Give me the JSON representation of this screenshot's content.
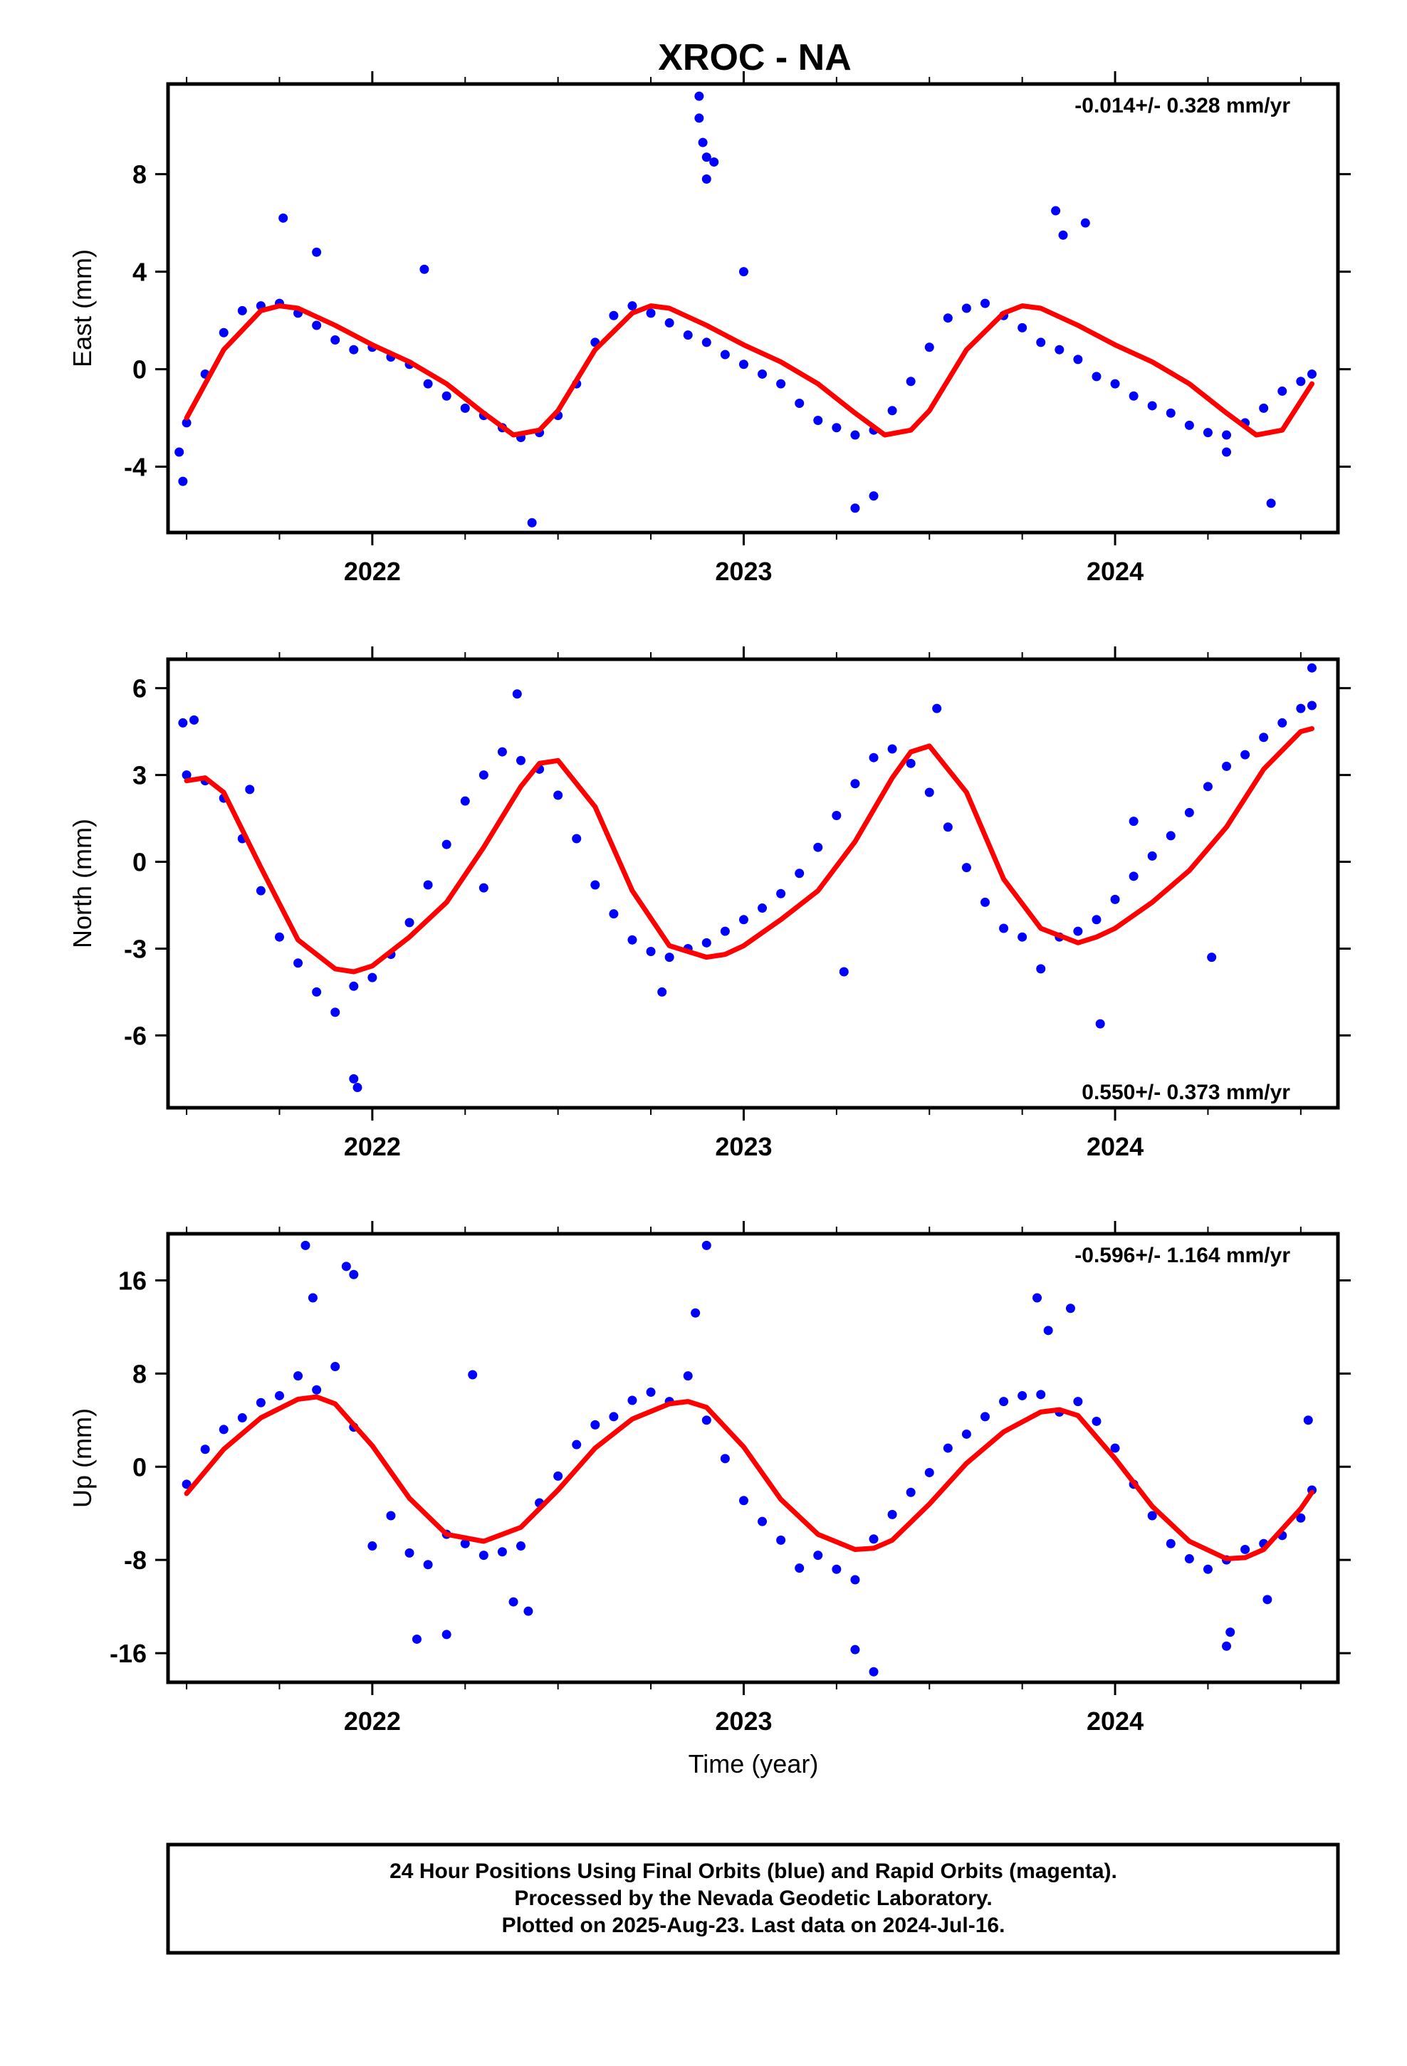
{
  "chart_data": {
    "type": "scatter",
    "title": "XROC - NA",
    "xlabel": "Time (year)",
    "x_ticks": [
      "2022",
      "2023",
      "2024"
    ],
    "xlim": [
      2021.45,
      2024.6
    ],
    "colors": {
      "final_orbits": "#0000ff",
      "fit": "#ff0000",
      "axes": "#000000"
    },
    "panels": [
      {
        "ylabel": "East (mm)",
        "ylim": [
          -6.7,
          11.7
        ],
        "y_ticks": [
          "-4",
          "0",
          "4",
          "8"
        ],
        "y_tick_values": [
          -4,
          0,
          4,
          8
        ],
        "rate": "-0.014+/- 0.328 mm/yr",
        "rate_position": "top-right",
        "series": [
          {
            "kind": "points",
            "x": [
              2021.5,
              2021.55,
              2021.6,
              2021.65,
              2021.7,
              2021.75,
              2021.8,
              2021.85,
              2021.9,
              2021.95,
              2022.0,
              2022.05,
              2022.1,
              2022.15,
              2022.2,
              2022.25,
              2022.3,
              2022.35,
              2022.4,
              2022.45,
              2022.5,
              2022.55,
              2022.6,
              2022.65,
              2022.7,
              2022.75,
              2022.8,
              2022.85,
              2022.9,
              2022.95,
              2023.0,
              2023.05,
              2023.1,
              2023.15,
              2023.2,
              2023.25,
              2023.3,
              2023.35,
              2023.4,
              2023.45,
              2023.5,
              2023.55,
              2023.6,
              2023.65,
              2023.7,
              2023.75,
              2023.8,
              2023.85,
              2023.9,
              2023.95,
              2024.0,
              2024.05,
              2024.1,
              2024.15,
              2024.2,
              2024.25,
              2024.3,
              2024.35,
              2024.4,
              2024.45,
              2024.5,
              2024.53
            ],
            "y": [
              -2.2,
              -0.2,
              1.5,
              2.4,
              2.6,
              2.7,
              2.3,
              1.8,
              1.2,
              0.8,
              0.9,
              0.5,
              0.2,
              -0.6,
              -1.1,
              -1.6,
              -1.9,
              -2.4,
              -2.8,
              -2.6,
              -1.9,
              -0.6,
              1.1,
              2.2,
              2.6,
              2.3,
              1.9,
              1.4,
              1.1,
              0.6,
              0.2,
              -0.2,
              -0.6,
              -1.4,
              -2.1,
              -2.4,
              -2.7,
              -2.5,
              -1.7,
              -0.5,
              0.9,
              2.1,
              2.5,
              2.7,
              2.2,
              1.7,
              1.1,
              0.8,
              0.4,
              -0.3,
              -0.6,
              -1.1,
              -1.5,
              -1.8,
              -2.3,
              -2.6,
              -2.7,
              -2.2,
              -1.6,
              -0.9,
              -0.5,
              -0.2
            ]
          },
          {
            "kind": "points",
            "x": [
              2021.48,
              2021.49,
              2021.76,
              2021.85,
              2022.14,
              2022.43,
              2022.88,
              2022.88,
              2022.89,
              2022.9,
              2022.9,
              2022.92,
              2023.0,
              2023.3,
              2023.35,
              2023.84,
              2023.86,
              2023.92,
              2024.3,
              2024.42
            ],
            "y": [
              -3.4,
              -4.6,
              6.2,
              4.8,
              4.1,
              -6.3,
              11.2,
              10.3,
              9.3,
              8.7,
              7.8,
              8.5,
              4.0,
              -5.7,
              -5.2,
              6.5,
              5.5,
              6.0,
              -3.4,
              -5.5
            ]
          },
          {
            "kind": "fit",
            "x": [
              2021.5,
              2021.6,
              2021.7,
              2021.75,
              2021.8,
              2021.9,
              2022.0,
              2022.1,
              2022.2,
              2022.3,
              2022.38,
              2022.45,
              2022.5,
              2022.6,
              2022.7,
              2022.75,
              2022.8,
              2022.9,
              2023.0,
              2023.1,
              2023.2,
              2023.3,
              2023.38,
              2023.45,
              2023.5,
              2023.6,
              2023.7,
              2023.75,
              2023.8,
              2023.9,
              2024.0,
              2024.1,
              2024.2,
              2024.3,
              2024.38,
              2024.45,
              2024.53
            ],
            "y": [
              -2.0,
              0.8,
              2.4,
              2.6,
              2.5,
              1.8,
              1.0,
              0.3,
              -0.6,
              -1.8,
              -2.7,
              -2.5,
              -1.7,
              0.8,
              2.3,
              2.6,
              2.5,
              1.8,
              1.0,
              0.3,
              -0.6,
              -1.8,
              -2.7,
              -2.5,
              -1.7,
              0.8,
              2.3,
              2.6,
              2.5,
              1.8,
              1.0,
              0.3,
              -0.6,
              -1.8,
              -2.7,
              -2.5,
              -0.6
            ]
          }
        ]
      },
      {
        "ylabel": "North (mm)",
        "ylim": [
          -8.5,
          7.0
        ],
        "y_ticks": [
          "-6",
          "-3",
          "0",
          "3",
          "6"
        ],
        "y_tick_values": [
          -6,
          -3,
          0,
          3,
          6
        ],
        "rate": "0.550+/- 0.373 mm/yr",
        "rate_position": "bottom-right",
        "series": [
          {
            "kind": "points",
            "x": [
              2021.5,
              2021.55,
              2021.6,
              2021.65,
              2021.7,
              2021.75,
              2021.8,
              2021.85,
              2021.9,
              2021.95,
              2022.0,
              2022.05,
              2022.1,
              2022.15,
              2022.2,
              2022.25,
              2022.3,
              2022.35,
              2022.4,
              2022.45,
              2022.5,
              2022.55,
              2022.6,
              2022.65,
              2022.7,
              2022.75,
              2022.8,
              2022.85,
              2022.9,
              2022.95,
              2023.0,
              2023.05,
              2023.1,
              2023.15,
              2023.2,
              2023.25,
              2023.3,
              2023.35,
              2023.4,
              2023.45,
              2023.5,
              2023.55,
              2023.6,
              2023.65,
              2023.7,
              2023.75,
              2023.8,
              2023.85,
              2023.9,
              2023.95,
              2024.0,
              2024.05,
              2024.1,
              2024.15,
              2024.2,
              2024.25,
              2024.3,
              2024.35,
              2024.4,
              2024.45,
              2024.5,
              2024.53
            ],
            "y": [
              3.0,
              2.8,
              2.2,
              0.8,
              -1.0,
              -2.6,
              -3.5,
              -4.5,
              -5.2,
              -4.3,
              -4.0,
              -3.2,
              -2.1,
              -0.8,
              0.6,
              2.1,
              3.0,
              3.8,
              3.5,
              3.2,
              2.3,
              0.8,
              -0.8,
              -1.8,
              -2.7,
              -3.1,
              -3.3,
              -3.0,
              -2.8,
              -2.4,
              -2.0,
              -1.6,
              -1.1,
              -0.4,
              0.5,
              1.6,
              2.7,
              3.6,
              3.9,
              3.4,
              2.4,
              1.2,
              -0.2,
              -1.4,
              -2.3,
              -2.6,
              -3.7,
              -2.6,
              -2.4,
              -2.0,
              -1.3,
              -0.5,
              0.2,
              0.9,
              1.7,
              2.6,
              3.3,
              3.7,
              4.3,
              4.8,
              5.3,
              5.4
            ]
          },
          {
            "kind": "points",
            "x": [
              2021.49,
              2021.52,
              2021.67,
              2021.95,
              2021.96,
              2022.3,
              2022.39,
              2022.78,
              2023.27,
              2023.52,
              2023.96,
              2024.05,
              2024.26,
              2024.53
            ],
            "y": [
              4.8,
              4.9,
              2.5,
              -7.5,
              -7.8,
              -0.9,
              5.8,
              -4.5,
              -3.8,
              5.3,
              -5.6,
              1.4,
              -3.3,
              6.7
            ]
          },
          {
            "kind": "fit",
            "x": [
              2021.5,
              2021.55,
              2021.6,
              2021.7,
              2021.8,
              2021.9,
              2021.95,
              2022.0,
              2022.1,
              2022.2,
              2022.3,
              2022.4,
              2022.45,
              2022.5,
              2022.6,
              2022.7,
              2022.8,
              2022.9,
              2022.95,
              2023.0,
              2023.1,
              2023.2,
              2023.3,
              2023.4,
              2023.45,
              2023.5,
              2023.6,
              2023.7,
              2023.8,
              2023.9,
              2023.95,
              2024.0,
              2024.1,
              2024.2,
              2024.3,
              2024.4,
              2024.5,
              2024.53
            ],
            "y": [
              2.8,
              2.9,
              2.4,
              -0.2,
              -2.7,
              -3.7,
              -3.8,
              -3.6,
              -2.6,
              -1.4,
              0.5,
              2.6,
              3.4,
              3.5,
              1.9,
              -1.0,
              -2.9,
              -3.3,
              -3.2,
              -2.9,
              -2.0,
              -1.0,
              0.7,
              2.9,
              3.8,
              4.0,
              2.4,
              -0.6,
              -2.3,
              -2.8,
              -2.6,
              -2.3,
              -1.4,
              -0.3,
              1.2,
              3.2,
              4.5,
              4.6
            ]
          }
        ]
      },
      {
        "ylabel": "Up (mm)",
        "ylim": [
          -18.5,
          20.0
        ],
        "y_ticks": [
          "-16",
          "-8",
          "0",
          "8",
          "16"
        ],
        "y_tick_values": [
          -16,
          -8,
          0,
          8,
          16
        ],
        "rate": "-0.596+/- 1.164 mm/yr",
        "rate_position": "top-right",
        "series": [
          {
            "kind": "points",
            "x": [
              2021.5,
              2021.55,
              2021.6,
              2021.65,
              2021.7,
              2021.75,
              2021.8,
              2021.85,
              2021.9,
              2021.95,
              2022.0,
              2022.05,
              2022.1,
              2022.15,
              2022.2,
              2022.25,
              2022.3,
              2022.35,
              2022.4,
              2022.45,
              2022.5,
              2022.55,
              2022.6,
              2022.65,
              2022.7,
              2022.75,
              2022.8,
              2022.85,
              2022.9,
              2022.95,
              2023.0,
              2023.05,
              2023.1,
              2023.15,
              2023.2,
              2023.25,
              2023.3,
              2023.35,
              2023.4,
              2023.45,
              2023.5,
              2023.55,
              2023.6,
              2023.65,
              2023.7,
              2023.75,
              2023.8,
              2023.85,
              2023.9,
              2023.95,
              2024.0,
              2024.05,
              2024.1,
              2024.15,
              2024.2,
              2024.25,
              2024.3,
              2024.35,
              2024.4,
              2024.45,
              2024.5,
              2024.53
            ],
            "y": [
              -1.5,
              1.5,
              3.2,
              4.2,
              5.5,
              6.1,
              7.8,
              6.6,
              8.6,
              3.4,
              -6.8,
              -4.2,
              -7.4,
              -8.4,
              -5.8,
              -6.6,
              -7.6,
              -7.3,
              -6.8,
              -3.1,
              -0.8,
              1.9,
              3.6,
              4.3,
              5.7,
              6.4,
              5.6,
              7.8,
              4.0,
              0.7,
              -2.9,
              -4.7,
              -6.3,
              -8.7,
              -7.6,
              -8.8,
              -9.7,
              -6.2,
              -4.1,
              -2.2,
              -0.5,
              1.6,
              2.8,
              4.3,
              5.6,
              6.1,
              6.2,
              4.7,
              5.6,
              3.9,
              1.6,
              -1.5,
              -4.2,
              -6.6,
              -7.9,
              -8.8,
              -8.0,
              -7.1,
              -6.6,
              -5.9,
              -4.4,
              -2.0
            ]
          },
          {
            "kind": "points",
            "x": [
              2021.82,
              2021.84,
              2021.93,
              2021.95,
              2022.12,
              2022.2,
              2022.27,
              2022.38,
              2022.42,
              2022.87,
              2022.9,
              2023.3,
              2023.35,
              2023.79,
              2023.82,
              2023.88,
              2024.3,
              2024.31,
              2024.41,
              2024.52
            ],
            "y": [
              19.0,
              14.5,
              17.2,
              16.5,
              -14.8,
              -14.4,
              7.9,
              -11.6,
              -12.4,
              13.2,
              19.0,
              -15.7,
              -17.6,
              14.5,
              11.7,
              13.6,
              -15.4,
              -14.2,
              -11.4,
              4.0
            ]
          },
          {
            "kind": "fit",
            "x": [
              2021.5,
              2021.6,
              2021.7,
              2021.8,
              2021.85,
              2021.9,
              2022.0,
              2022.1,
              2022.2,
              2022.3,
              2022.4,
              2022.5,
              2022.6,
              2022.7,
              2022.8,
              2022.85,
              2022.9,
              2023.0,
              2023.1,
              2023.2,
              2023.3,
              2023.35,
              2023.4,
              2023.5,
              2023.6,
              2023.7,
              2023.8,
              2023.85,
              2023.9,
              2024.0,
              2024.1,
              2024.2,
              2024.3,
              2024.35,
              2024.4,
              2024.5,
              2024.53
            ],
            "y": [
              -2.3,
              1.5,
              4.2,
              5.8,
              6.0,
              5.4,
              1.8,
              -2.7,
              -5.8,
              -6.4,
              -5.2,
              -2.0,
              1.6,
              4.1,
              5.4,
              5.6,
              5.1,
              1.7,
              -2.8,
              -5.8,
              -7.1,
              -7.0,
              -6.3,
              -3.2,
              0.3,
              3.0,
              4.7,
              4.9,
              4.4,
              0.7,
              -3.4,
              -6.4,
              -7.9,
              -7.8,
              -7.1,
              -3.6,
              -2.2
            ]
          }
        ]
      }
    ]
  },
  "footer": {
    "line1": "24 Hour Positions Using Final Orbits (blue) and Rapid Orbits (magenta).",
    "line2": "Processed by the Nevada Geodetic Laboratory.",
    "line3": "Plotted on 2025-Aug-23. Last data on 2024-Jul-16."
  }
}
